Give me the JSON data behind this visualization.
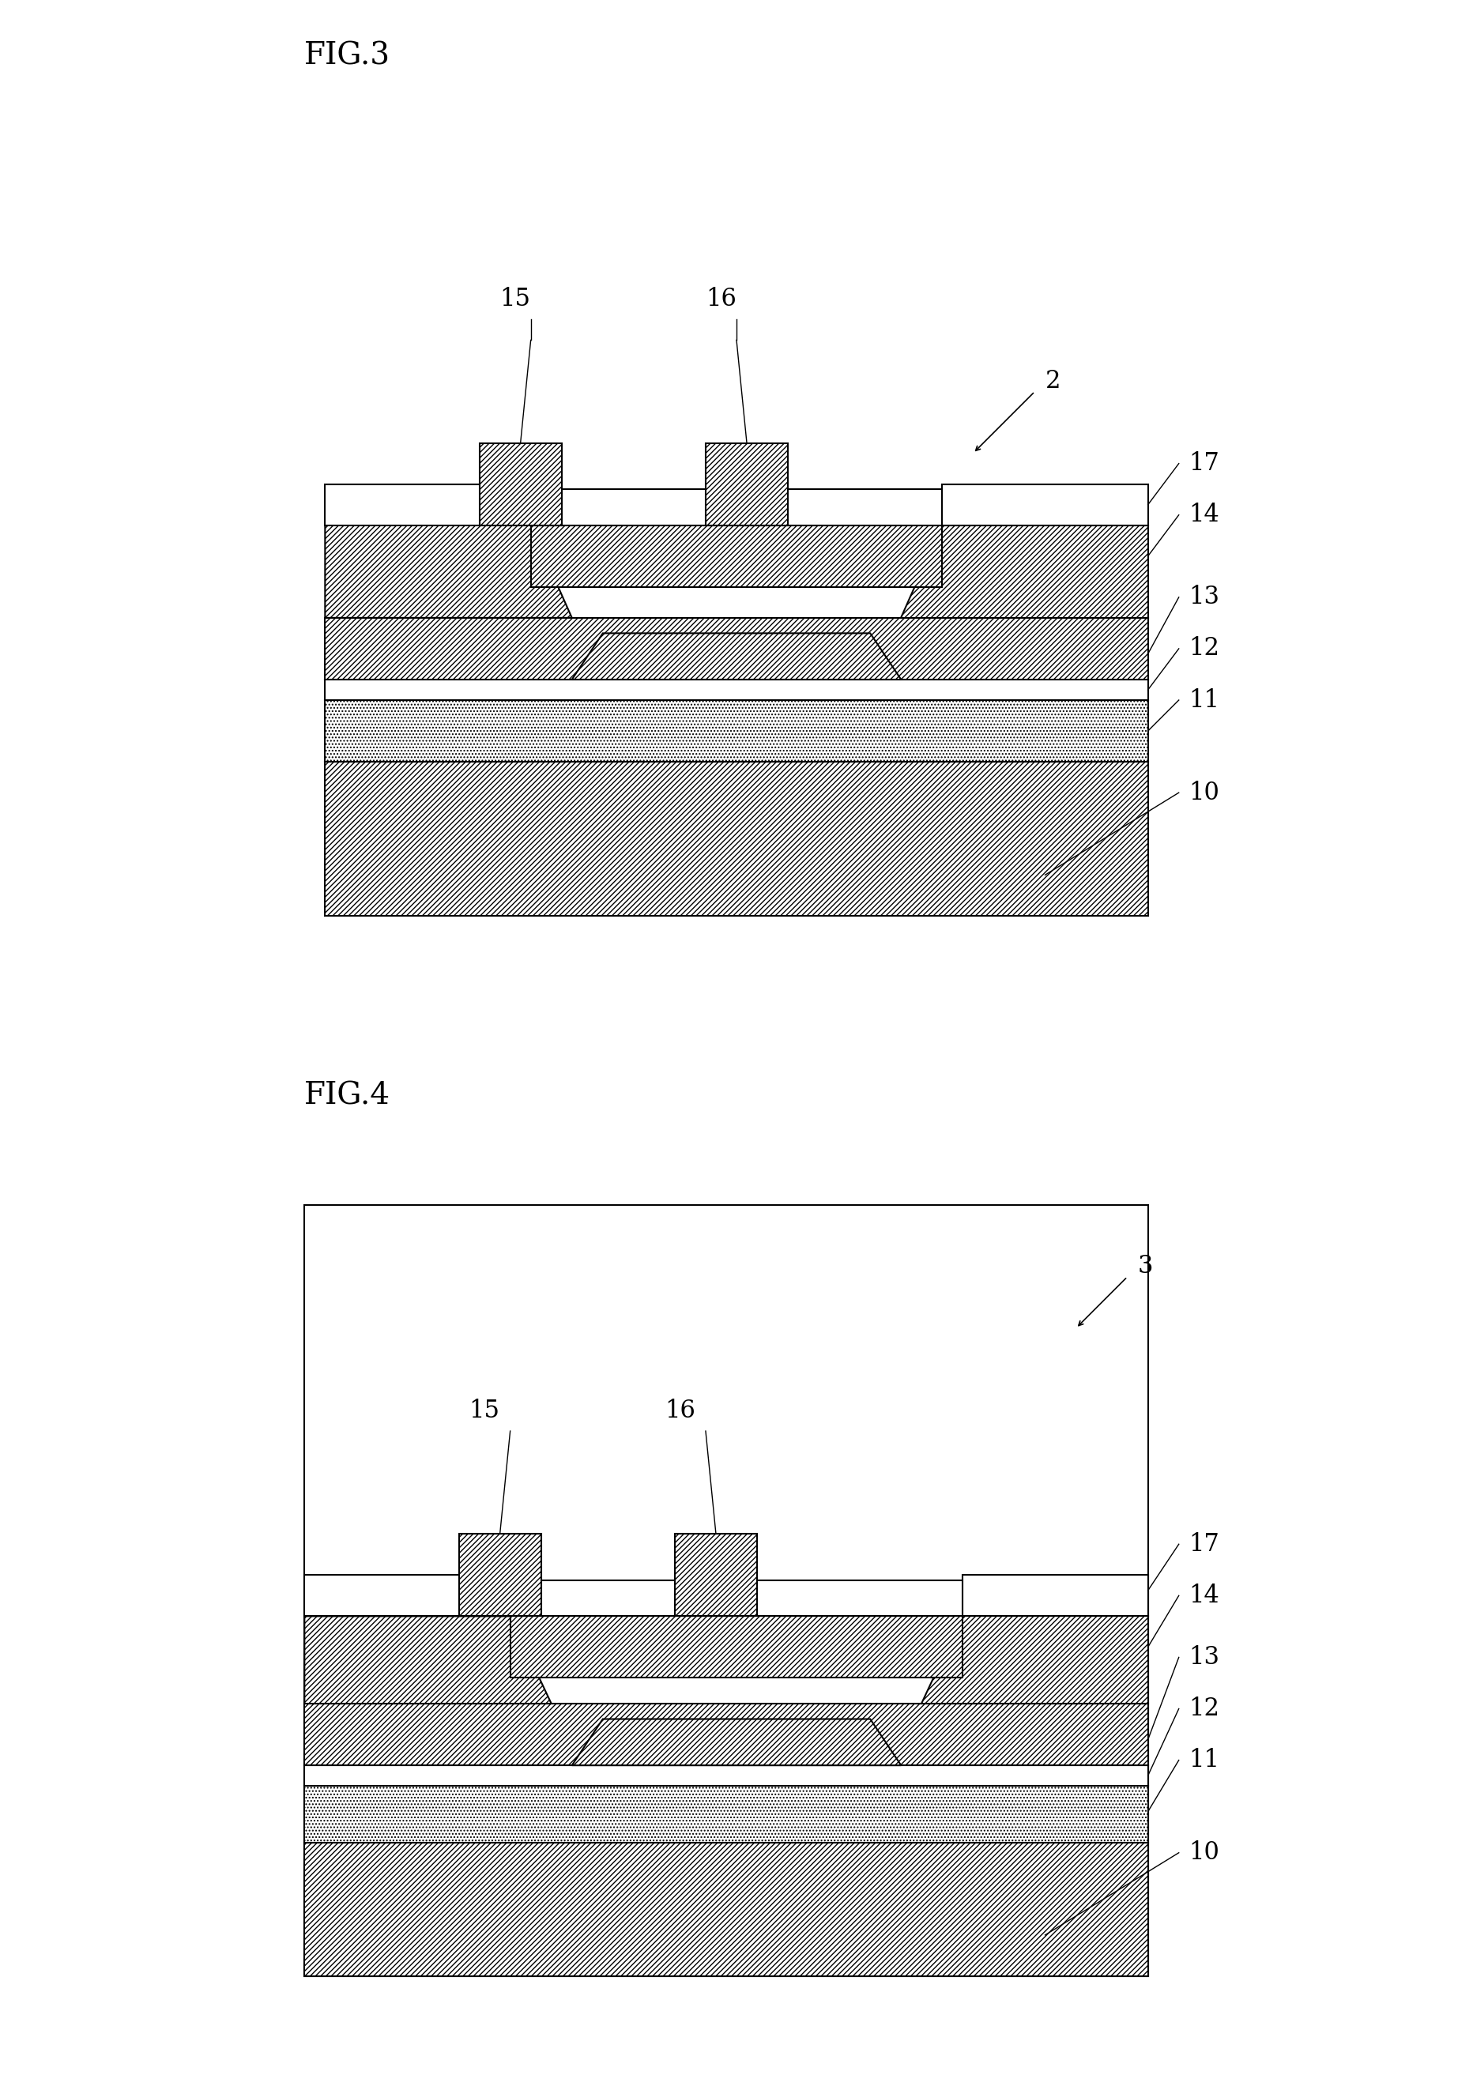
{
  "fig3_label": "FIG.3",
  "fig4_label": "FIG.4",
  "label_2": "2",
  "label_3": "3",
  "font_size_title": 28,
  "font_size_label": 22,
  "line_width": 1.5
}
